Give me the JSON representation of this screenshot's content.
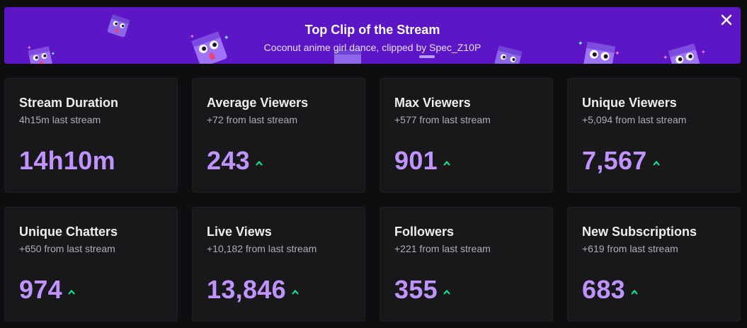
{
  "banner": {
    "title": "Top Clip of the Stream",
    "subtitle": "Coconut anime girl dance, clipped by Spec_Z10P",
    "close_icon": "close-icon",
    "background_color": "#5c16c5"
  },
  "colors": {
    "accent": "#bf94ff",
    "increase": "#00f593",
    "card_bg": "#18181b",
    "page_bg": "#0e0e10"
  },
  "stats": [
    {
      "title": "Stream Duration",
      "sub": "4h15m last stream",
      "value": "14h10m",
      "trend": "none"
    },
    {
      "title": "Average Viewers",
      "sub": "+72 from last stream",
      "value": "243",
      "trend": "up"
    },
    {
      "title": "Max Viewers",
      "sub": "+577 from last stream",
      "value": "901",
      "trend": "up"
    },
    {
      "title": "Unique Viewers",
      "sub": "+5,094 from last stream",
      "value": "7,567",
      "trend": "up"
    },
    {
      "title": "Unique Chatters",
      "sub": "+650 from last stream",
      "value": "974",
      "trend": "up"
    },
    {
      "title": "Live Views",
      "sub": "+10,182 from last stream",
      "value": "13,846",
      "trend": "up"
    },
    {
      "title": "Followers",
      "sub": "+221 from last stream",
      "value": "355",
      "trend": "up"
    },
    {
      "title": "New Subscriptions",
      "sub": "+619 from last stream",
      "value": "683",
      "trend": "up"
    }
  ]
}
